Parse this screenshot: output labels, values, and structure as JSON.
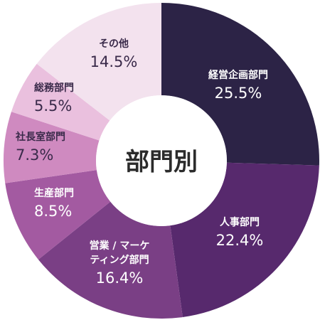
{
  "chart_data": {
    "type": "pie",
    "title": "部門別",
    "slices": [
      {
        "label": "経営企画部門",
        "value": 25.5,
        "display": "25.5%",
        "color": "#2c2346",
        "text_color": "#ffffff"
      },
      {
        "label": "人事部門",
        "value": 22.4,
        "display": "22.4%",
        "color": "#57296d",
        "text_color": "#ffffff"
      },
      {
        "label": "営業 / マーケティング部門",
        "label_lines": [
          "営業 / マーケ",
          "ティング部門"
        ],
        "value": 16.4,
        "display": "16.4%",
        "color": "#7a3f85",
        "text_color": "#ffffff"
      },
      {
        "label": "生産部門",
        "value": 8.5,
        "display": "8.5%",
        "color": "#a35aa1",
        "text_color": "#ffffff"
      },
      {
        "label": "社長室部門",
        "value": 7.3,
        "display": "7.3%",
        "color": "#cf8ac0",
        "text_color": "#3a2a4a"
      },
      {
        "label": "総務部門",
        "value": 5.5,
        "display": "5.5%",
        "color": "#eac0de",
        "text_color": "#3a2a4a"
      },
      {
        "label": "その他",
        "value": 14.5,
        "display": "14.5%",
        "color": "#f3e2ee",
        "text_color": "#3a2a4a"
      }
    ]
  }
}
